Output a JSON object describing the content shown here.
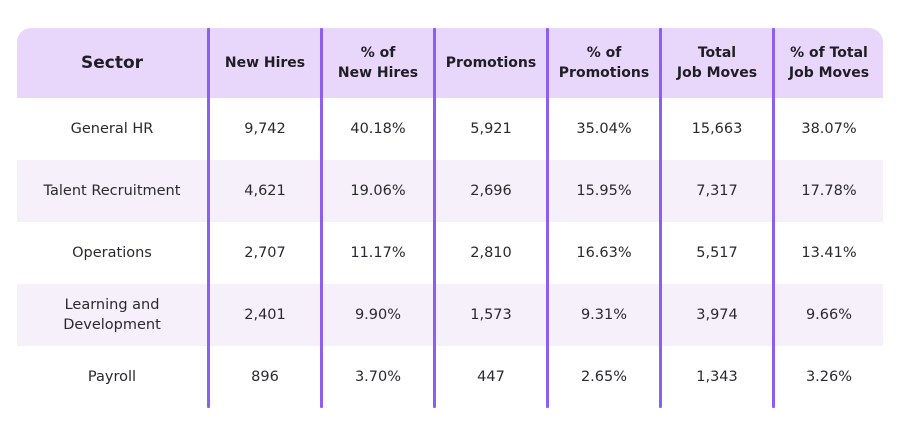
{
  "chart_data": {
    "type": "table",
    "columns": [
      "Sector",
      "New Hires",
      "% of\nNew Hires",
      "Promotions",
      "% of\nPromotions",
      "Total\nJob Moves",
      "% of Total\nJob Moves"
    ],
    "rows": [
      {
        "sector": "General HR",
        "new_hires": "9,742",
        "pct_new_hires": "40.18%",
        "promotions": "5,921",
        "pct_promotions": "35.04%",
        "total_moves": "15,663",
        "pct_total_moves": "38.07%"
      },
      {
        "sector": "Talent Recruitment",
        "new_hires": "4,621",
        "pct_new_hires": "19.06%",
        "promotions": "2,696",
        "pct_promotions": "15.95%",
        "total_moves": "7,317",
        "pct_total_moves": "17.78%"
      },
      {
        "sector": "Operations",
        "new_hires": "2,707",
        "pct_new_hires": "11.17%",
        "promotions": "2,810",
        "pct_promotions": "16.63%",
        "total_moves": "5,517",
        "pct_total_moves": "13.41%"
      },
      {
        "sector": "Learning and\nDevelopment",
        "new_hires": "2,401",
        "pct_new_hires": "9.90%",
        "promotions": "1,573",
        "pct_promotions": "9.31%",
        "total_moves": "3,974",
        "pct_total_moves": "9.66%"
      },
      {
        "sector": "Payroll",
        "new_hires": "896",
        "pct_new_hires": "3.70%",
        "promotions": "447",
        "pct_promotions": "2.65%",
        "total_moves": "1,343",
        "pct_total_moves": "3.26%"
      }
    ]
  },
  "colors": {
    "header_bg": "#e9d7fb",
    "alt_row_bg": "#f6f0fa",
    "divider": "#8d5ff0",
    "text": "#2a2a2e"
  }
}
